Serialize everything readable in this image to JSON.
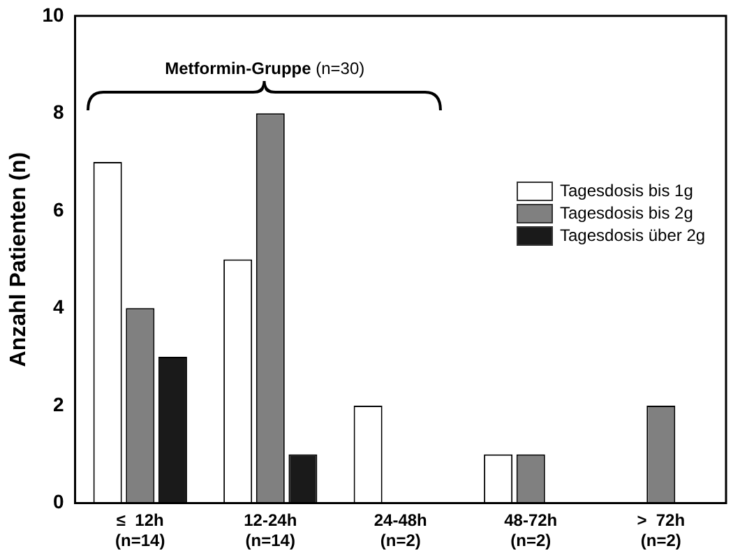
{
  "chart_data": {
    "type": "bar",
    "ylabel": "Anzahl Patienten (n)",
    "categories": [
      "≤  12h\n(n=14)",
      "12-24h\n(n=14)",
      "24-48h\n(n=2)",
      "48-72h\n(n=2)",
      ">  72h\n(n=2)"
    ],
    "series": [
      {
        "name": "Tagesdosis bis 1g",
        "color": "#ffffff",
        "values": [
          7,
          5,
          2,
          1,
          0
        ]
      },
      {
        "name": "Tagesdosis bis 2g",
        "color": "#808080",
        "values": [
          4,
          8,
          0,
          1,
          2
        ]
      },
      {
        "name": "Tagesdosis über 2g",
        "color": "#1a1a1a",
        "values": [
          3,
          1,
          0,
          0,
          0
        ]
      }
    ],
    "ylim": [
      0,
      10
    ],
    "yticks": [
      0,
      2,
      4,
      6,
      8,
      10
    ],
    "grid": false,
    "legend": "top right",
    "annotations": [
      "Metformin-Gruppe (n=30)"
    ]
  }
}
